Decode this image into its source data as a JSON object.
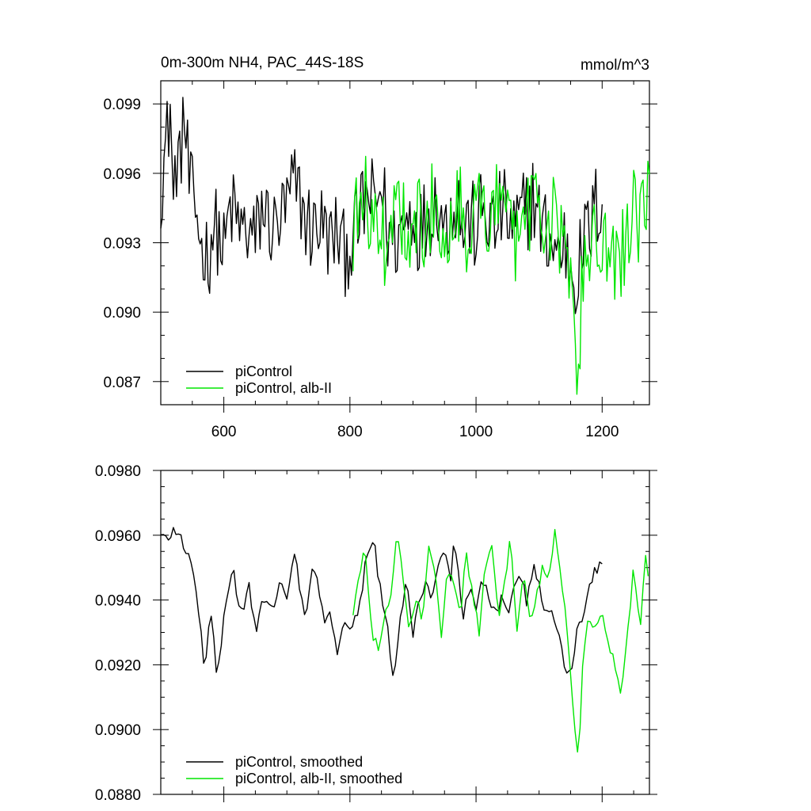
{
  "chart_data": [
    {
      "type": "line",
      "title": "0m-300m NH4, PAC_44S-18S",
      "units": "mmol/m^3",
      "xlim": [
        500,
        1275
      ],
      "ylim": [
        0.086,
        0.1
      ],
      "x_ticks": [
        600,
        800,
        1000,
        1200
      ],
      "x_tick_labels": [
        "600",
        "800",
        "1000",
        "1200"
      ],
      "y_ticks": [
        0.087,
        0.09,
        0.093,
        0.096,
        0.099
      ],
      "y_tick_labels": [
        "0.087",
        "0.090",
        "0.093",
        "0.096",
        "0.099"
      ],
      "grid": false,
      "legend_position": "bottom-left",
      "series": [
        {
          "name": "piControl",
          "color": "#000000",
          "x_range": [
            500,
            1200
          ],
          "points": [
            [
              500,
              0.0955
            ],
            [
              510,
              0.0975
            ],
            [
              515,
              0.099
            ],
            [
              520,
              0.0945
            ],
            [
              525,
              0.0968
            ],
            [
              530,
              0.096
            ],
            [
              535,
              0.0985
            ],
            [
              540,
              0.0975
            ],
            [
              545,
              0.0955
            ],
            [
              550,
              0.0948
            ],
            [
              560,
              0.094
            ],
            [
              565,
              0.0925
            ],
            [
              570,
              0.093
            ],
            [
              575,
              0.092
            ],
            [
              580,
              0.0935
            ],
            [
              590,
              0.0935
            ],
            [
              600,
              0.0925
            ],
            [
              610,
              0.0945
            ],
            [
              620,
              0.094
            ],
            [
              630,
              0.0935
            ],
            [
              640,
              0.0935
            ],
            [
              650,
              0.093
            ],
            [
              660,
              0.0945
            ],
            [
              670,
              0.094
            ],
            [
              680,
              0.0935
            ],
            [
              690,
              0.094
            ],
            [
              700,
              0.0945
            ],
            [
              710,
              0.0955
            ],
            [
              720,
              0.095
            ],
            [
              730,
              0.094
            ],
            [
              740,
              0.0935
            ],
            [
              750,
              0.094
            ],
            [
              760,
              0.0935
            ],
            [
              770,
              0.093
            ],
            [
              780,
              0.0935
            ],
            [
              790,
              0.0925
            ],
            [
              800,
              0.093
            ],
            [
              810,
              0.0935
            ],
            [
              820,
              0.0945
            ],
            [
              830,
              0.095
            ],
            [
              840,
              0.0945
            ],
            [
              850,
              0.0955
            ],
            [
              860,
              0.0935
            ],
            [
              870,
              0.093
            ],
            [
              880,
              0.0935
            ],
            [
              890,
              0.094
            ],
            [
              900,
              0.0945
            ],
            [
              910,
              0.0935
            ],
            [
              920,
              0.094
            ],
            [
              930,
              0.0945
            ],
            [
              940,
              0.095
            ],
            [
              950,
              0.0935
            ],
            [
              960,
              0.0945
            ],
            [
              970,
              0.095
            ],
            [
              980,
              0.0935
            ],
            [
              990,
              0.094
            ],
            [
              1000,
              0.0935
            ],
            [
              1010,
              0.0945
            ],
            [
              1020,
              0.094
            ],
            [
              1030,
              0.0935
            ],
            [
              1040,
              0.0945
            ],
            [
              1050,
              0.094
            ],
            [
              1060,
              0.0935
            ],
            [
              1070,
              0.094
            ],
            [
              1080,
              0.0945
            ],
            [
              1090,
              0.095
            ],
            [
              1100,
              0.094
            ],
            [
              1110,
              0.0935
            ],
            [
              1120,
              0.093
            ],
            [
              1130,
              0.0925
            ],
            [
              1140,
              0.093
            ],
            [
              1150,
              0.092
            ],
            [
              1160,
              0.0915
            ],
            [
              1170,
              0.093
            ],
            [
              1180,
              0.0935
            ],
            [
              1190,
              0.0945
            ],
            [
              1200,
              0.095
            ]
          ]
        },
        {
          "name": "piControl, alb-II",
          "color": "#00e600",
          "x_range": [
            805,
            1275
          ],
          "points": [
            [
              805,
              0.0935
            ],
            [
              815,
              0.0945
            ],
            [
              825,
              0.095
            ],
            [
              835,
              0.094
            ],
            [
              845,
              0.0935
            ],
            [
              855,
              0.093
            ],
            [
              865,
              0.0935
            ],
            [
              875,
              0.095
            ],
            [
              885,
              0.094
            ],
            [
              895,
              0.0935
            ],
            [
              905,
              0.0945
            ],
            [
              915,
              0.0935
            ],
            [
              925,
              0.094
            ],
            [
              935,
              0.095
            ],
            [
              945,
              0.094
            ],
            [
              955,
              0.0935
            ],
            [
              965,
              0.0945
            ],
            [
              975,
              0.095
            ],
            [
              985,
              0.0935
            ],
            [
              995,
              0.094
            ],
            [
              1005,
              0.095
            ],
            [
              1015,
              0.0935
            ],
            [
              1025,
              0.0945
            ],
            [
              1035,
              0.095
            ],
            [
              1045,
              0.0935
            ],
            [
              1055,
              0.094
            ],
            [
              1065,
              0.093
            ],
            [
              1075,
              0.0945
            ],
            [
              1085,
              0.094
            ],
            [
              1095,
              0.095
            ],
            [
              1105,
              0.0945
            ],
            [
              1115,
              0.0935
            ],
            [
              1125,
              0.094
            ],
            [
              1135,
              0.093
            ],
            [
              1145,
              0.0925
            ],
            [
              1150,
              0.091
            ],
            [
              1155,
              0.0895
            ],
            [
              1160,
              0.088
            ],
            [
              1165,
              0.089
            ],
            [
              1170,
              0.092
            ],
            [
              1180,
              0.093
            ],
            [
              1190,
              0.0935
            ],
            [
              1200,
              0.0925
            ],
            [
              1210,
              0.093
            ],
            [
              1220,
              0.0915
            ],
            [
              1230,
              0.0925
            ],
            [
              1240,
              0.093
            ],
            [
              1250,
              0.095
            ],
            [
              1260,
              0.0935
            ],
            [
              1270,
              0.0955
            ],
            [
              1275,
              0.094
            ]
          ]
        }
      ]
    },
    {
      "type": "line",
      "xlim": [
        500,
        1275
      ],
      "ylim": [
        0.088,
        0.098
      ],
      "x_ticks": [
        600,
        800,
        1000,
        1200
      ],
      "y_ticks": [
        0.088,
        0.09,
        0.092,
        0.094,
        0.096,
        0.098
      ],
      "y_tick_labels": [
        "0.0880",
        "0.0900",
        "0.0920",
        "0.0940",
        "0.0960",
        "0.0980"
      ],
      "grid": false,
      "legend_position": "bottom-left",
      "series": [
        {
          "name": "piControl, smoothed",
          "color": "#000000",
          "points": [
            [
              500,
              0.096
            ],
            [
              510,
              0.0958
            ],
            [
              520,
              0.0962
            ],
            [
              530,
              0.096
            ],
            [
              540,
              0.0955
            ],
            [
              550,
              0.095
            ],
            [
              555,
              0.0945
            ],
            [
              560,
              0.0935
            ],
            [
              565,
              0.0928
            ],
            [
              570,
              0.0918
            ],
            [
              575,
              0.093
            ],
            [
              580,
              0.0935
            ],
            [
              585,
              0.0925
            ],
            [
              590,
              0.0915
            ],
            [
              600,
              0.0935
            ],
            [
              610,
              0.0945
            ],
            [
              615,
              0.095
            ],
            [
              620,
              0.094
            ],
            [
              630,
              0.0935
            ],
            [
              640,
              0.0945
            ],
            [
              650,
              0.093
            ],
            [
              660,
              0.094
            ],
            [
              670,
              0.094
            ],
            [
              680,
              0.0938
            ],
            [
              690,
              0.0945
            ],
            [
              700,
              0.094
            ],
            [
              710,
              0.0955
            ],
            [
              720,
              0.0945
            ],
            [
              730,
              0.0935
            ],
            [
              740,
              0.0948
            ],
            [
              750,
              0.0945
            ],
            [
              760,
              0.0932
            ],
            [
              770,
              0.0935
            ],
            [
              780,
              0.0925
            ],
            [
              790,
              0.0935
            ],
            [
              800,
              0.093
            ],
            [
              810,
              0.0935
            ],
            [
              820,
              0.0945
            ],
            [
              830,
              0.0958
            ],
            [
              840,
              0.0955
            ],
            [
              850,
              0.094
            ],
            [
              860,
              0.093
            ],
            [
              870,
              0.0915
            ],
            [
              880,
              0.0935
            ],
            [
              890,
              0.0945
            ],
            [
              900,
              0.093
            ],
            [
              910,
              0.094
            ],
            [
              920,
              0.0945
            ],
            [
              930,
              0.094
            ],
            [
              940,
              0.095
            ],
            [
              950,
              0.0955
            ],
            [
              960,
              0.0945
            ],
            [
              965,
              0.0962
            ],
            [
              970,
              0.095
            ],
            [
              980,
              0.0935
            ],
            [
              990,
              0.0945
            ],
            [
              1000,
              0.0935
            ],
            [
              1010,
              0.0948
            ],
            [
              1020,
              0.094
            ],
            [
              1030,
              0.0935
            ],
            [
              1040,
              0.094
            ],
            [
              1050,
              0.0935
            ],
            [
              1060,
              0.0945
            ],
            [
              1070,
              0.095
            ],
            [
              1080,
              0.094
            ],
            [
              1090,
              0.095
            ],
            [
              1100,
              0.0945
            ],
            [
              1110,
              0.0935
            ],
            [
              1120,
              0.0938
            ],
            [
              1130,
              0.093
            ],
            [
              1140,
              0.092
            ],
            [
              1150,
              0.0918
            ],
            [
              1160,
              0.093
            ],
            [
              1170,
              0.0935
            ],
            [
              1180,
              0.0945
            ],
            [
              1190,
              0.095
            ],
            [
              1200,
              0.095
            ]
          ]
        },
        {
          "name": "piControl, alb-II, smoothed",
          "color": "#00e600",
          "points": [
            [
              805,
              0.0935
            ],
            [
              815,
              0.095
            ],
            [
              825,
              0.0955
            ],
            [
              835,
              0.093
            ],
            [
              845,
              0.0925
            ],
            [
              855,
              0.0935
            ],
            [
              865,
              0.094
            ],
            [
              875,
              0.0962
            ],
            [
              885,
              0.0945
            ],
            [
              895,
              0.093
            ],
            [
              905,
              0.094
            ],
            [
              915,
              0.0935
            ],
            [
              925,
              0.0955
            ],
            [
              935,
              0.095
            ],
            [
              945,
              0.093
            ],
            [
              955,
              0.095
            ],
            [
              965,
              0.0945
            ],
            [
              975,
              0.0935
            ],
            [
              985,
              0.0955
            ],
            [
              995,
              0.094
            ],
            [
              1005,
              0.093
            ],
            [
              1015,
              0.095
            ],
            [
              1025,
              0.0955
            ],
            [
              1035,
              0.0935
            ],
            [
              1045,
              0.0945
            ],
            [
              1055,
              0.096
            ],
            [
              1065,
              0.093
            ],
            [
              1075,
              0.095
            ],
            [
              1085,
              0.0935
            ],
            [
              1095,
              0.094
            ],
            [
              1105,
              0.095
            ],
            [
              1115,
              0.0945
            ],
            [
              1125,
              0.096
            ],
            [
              1135,
              0.0948
            ],
            [
              1145,
              0.093
            ],
            [
              1150,
              0.0915
            ],
            [
              1155,
              0.0905
            ],
            [
              1160,
              0.0892
            ],
            [
              1165,
              0.09
            ],
            [
              1170,
              0.0925
            ],
            [
              1180,
              0.0935
            ],
            [
              1190,
              0.093
            ],
            [
              1200,
              0.0935
            ],
            [
              1210,
              0.0925
            ],
            [
              1220,
              0.092
            ],
            [
              1230,
              0.0912
            ],
            [
              1240,
              0.093
            ],
            [
              1250,
              0.095
            ],
            [
              1260,
              0.0932
            ],
            [
              1270,
              0.0955
            ],
            [
              1275,
              0.094
            ]
          ]
        }
      ]
    }
  ]
}
